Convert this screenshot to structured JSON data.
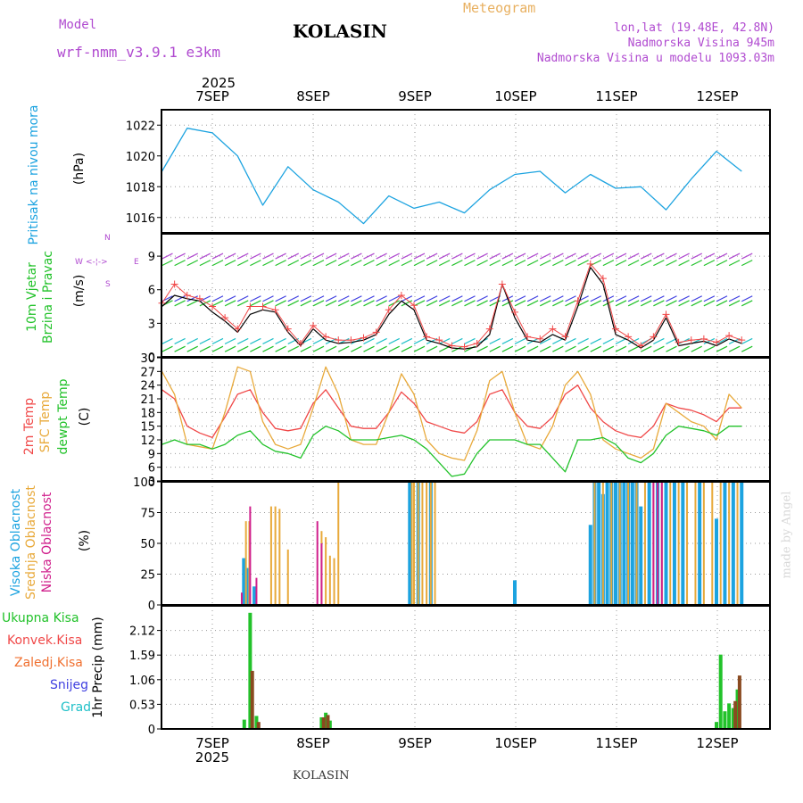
{
  "header": {
    "model_label": "Model",
    "model_name": "wrf-nmm_v3.9.1  e3km",
    "station": "KOLASIN",
    "meteogram": "Meteogram",
    "lonlat": "lon,lat (19.48E, 42.8N)",
    "alt": "Nadmorska Visina 945m",
    "alt_model": "Nadmorska Visina u modelu 1093.03m",
    "footer": "KOLASIN",
    "watermark": "made by Angel"
  },
  "colors": {
    "pressure": "#1ca3e0",
    "green": "#22c22a",
    "orange": "#e8a93a",
    "red": "#f04848",
    "purple": "#b04ad0",
    "magenta": "#d0208c",
    "blue": "#4040e0",
    "cyan": "#20c0c8"
  },
  "xaxis": {
    "year": "2025",
    "days": [
      "7SEP",
      "8SEP",
      "9SEP",
      "10SEP",
      "11SEP",
      "12SEP"
    ]
  },
  "chart_data": [
    {
      "type": "line",
      "panel": "pressure",
      "labels": [
        "Pritisak na nivou mora",
        "(hPa)"
      ],
      "ylim": [
        1015,
        1023
      ],
      "yticks": [
        "1016",
        "1018",
        "1020",
        "1022"
      ],
      "x": [
        0,
        6,
        12,
        18,
        24,
        30,
        36,
        42,
        48,
        54,
        60,
        66,
        72,
        78,
        84,
        90,
        96,
        102,
        108,
        114,
        120,
        126,
        132,
        138
      ],
      "y": [
        1019.0,
        1021.8,
        1021.5,
        1020.0,
        1016.8,
        1019.3,
        1017.8,
        1017.0,
        1015.6,
        1017.4,
        1016.6,
        1017.0,
        1016.3,
        1017.8,
        1018.8,
        1019.0,
        1017.6,
        1018.8,
        1017.9,
        1018.0,
        1016.5,
        1018.5,
        1020.3,
        1019.0
      ],
      "grid": "dotted"
    },
    {
      "type": "line",
      "panel": "wind",
      "labels": [
        "10m Vjetar",
        "Brzina i Pravac",
        "(m/s)"
      ],
      "compass": [
        "N",
        "W",
        "E",
        "S"
      ],
      "ylim": [
        0,
        11
      ],
      "yticks": [
        "0",
        "3",
        "6",
        "9"
      ],
      "x": [
        0,
        3,
        6,
        9,
        12,
        15,
        18,
        21,
        24,
        27,
        30,
        33,
        36,
        39,
        42,
        45,
        48,
        51,
        54,
        57,
        60,
        63,
        66,
        69,
        72,
        75,
        78,
        81,
        84,
        87,
        90,
        93,
        96,
        99,
        102,
        105,
        108,
        111,
        114,
        117,
        120,
        123,
        126,
        129,
        132,
        135,
        138
      ],
      "series": [
        {
          "name": "speed",
          "values": [
            4.5,
            5.5,
            5.2,
            5.0,
            4.0,
            3.2,
            2.2,
            3.8,
            4.2,
            4.0,
            2.2,
            1.0,
            2.5,
            1.5,
            1.2,
            1.3,
            1.5,
            2.0,
            3.8,
            5.0,
            4.2,
            1.5,
            1.2,
            0.8,
            0.7,
            0.9,
            2.0,
            6.5,
            3.5,
            1.5,
            1.3,
            2.0,
            1.5,
            4.5,
            8.0,
            6.5,
            2.0,
            1.5,
            0.8,
            1.5,
            3.5,
            1.0,
            1.2,
            1.4,
            1.0,
            1.6,
            1.2
          ]
        },
        {
          "name": "gust",
          "values": [
            4.8,
            6.5,
            5.5,
            5.2,
            4.5,
            3.5,
            2.5,
            4.5,
            4.5,
            4.2,
            2.5,
            1.2,
            2.8,
            1.8,
            1.5,
            1.5,
            1.7,
            2.2,
            4.2,
            5.5,
            4.6,
            1.8,
            1.5,
            1.0,
            0.9,
            1.2,
            2.5,
            6.5,
            4.0,
            1.8,
            1.6,
            2.5,
            1.8,
            5.0,
            8.3,
            7.0,
            2.5,
            1.8,
            1.0,
            1.8,
            3.8,
            1.3,
            1.5,
            1.6,
            1.3,
            1.9,
            1.5
          ]
        }
      ]
    },
    {
      "type": "line",
      "panel": "temperature",
      "labels": [
        "2m Temp",
        "SFC Temp",
        "dewpt Temp",
        "(C)"
      ],
      "ylim": [
        3,
        30
      ],
      "yticks": [
        "3",
        "6",
        "9",
        "12",
        "15",
        "18",
        "21",
        "24",
        "27",
        "30"
      ],
      "x": [
        0,
        3,
        6,
        9,
        12,
        15,
        18,
        21,
        24,
        27,
        30,
        33,
        36,
        39,
        42,
        45,
        48,
        51,
        54,
        57,
        60,
        63,
        66,
        69,
        72,
        75,
        78,
        81,
        84,
        87,
        90,
        93,
        96,
        99,
        102,
        105,
        108,
        111,
        114,
        117,
        120,
        123,
        126,
        129,
        132,
        135,
        138
      ],
      "series": [
        {
          "name": "2m Temp",
          "values": [
            23,
            21,
            15,
            13.5,
            12.5,
            17,
            22,
            23,
            18,
            14.5,
            14,
            14.5,
            20,
            23,
            19,
            15,
            14.5,
            14.5,
            18,
            22.5,
            20,
            16,
            15,
            14,
            13.5,
            16,
            22,
            23,
            18,
            15,
            14.5,
            17,
            22,
            24,
            19,
            16,
            14,
            13,
            12.5,
            15,
            20,
            19,
            18.5,
            17.5,
            16,
            19,
            19
          ]
        },
        {
          "name": "SFC Temp",
          "values": [
            27,
            22,
            11,
            10.5,
            10,
            18,
            28,
            27,
            16,
            11,
            10,
            11,
            19,
            28,
            22,
            12,
            11,
            11,
            18,
            26.5,
            22,
            12,
            9,
            8,
            7.5,
            14,
            25,
            27,
            18,
            11,
            10,
            15,
            24,
            27,
            22,
            12,
            10,
            9,
            8,
            10,
            20,
            18,
            16,
            15,
            12,
            22,
            19
          ]
        },
        {
          "name": "dewpt Temp",
          "values": [
            11,
            12,
            11,
            11,
            10,
            11,
            13,
            14,
            11,
            9.5,
            9,
            8,
            13,
            15,
            14,
            12,
            12,
            12,
            12.5,
            13,
            12,
            10,
            7,
            4,
            4.5,
            9,
            12,
            12,
            12,
            11,
            11,
            8,
            5,
            12,
            12,
            12.5,
            11,
            8,
            7,
            9,
            13,
            15,
            14.5,
            14,
            13,
            15,
            15
          ]
        }
      ]
    },
    {
      "type": "bar",
      "panel": "cloud",
      "labels": [
        "Visoka Oblacnost",
        "Srednja Oblacnost",
        "Niska Oblacnost",
        "(%)"
      ],
      "ylim": [
        0,
        100
      ],
      "yticks": [
        "0",
        "25",
        "50",
        "75",
        "100"
      ],
      "series": [
        {
          "name": "Visoka",
          "x": [
            19.5,
            20.5,
            22,
            59,
            61,
            64,
            84,
            102,
            103,
            104,
            105,
            106,
            107,
            108,
            109,
            110,
            111,
            112,
            113,
            114,
            116,
            118,
            120,
            122,
            124,
            128,
            132,
            134,
            136,
            138
          ],
          "values": [
            38,
            30,
            15,
            100,
            100,
            100,
            20,
            65,
            100,
            100,
            90,
            100,
            100,
            100,
            100,
            100,
            100,
            100,
            100,
            80,
            100,
            100,
            100,
            100,
            100,
            100,
            70,
            100,
            100,
            100
          ]
        },
        {
          "name": "Srednja",
          "x": [
            20,
            20.8,
            26,
            27,
            28,
            30,
            38,
            39,
            40,
            41,
            42,
            59.5,
            60,
            61,
            62,
            63,
            64,
            65,
            103,
            105,
            107,
            109,
            111,
            113,
            115,
            117,
            119,
            121,
            123,
            125,
            127,
            129,
            131,
            133,
            135,
            137
          ],
          "values": [
            68,
            68,
            80,
            80,
            78,
            45,
            60,
            55,
            40,
            38,
            100,
            100,
            100,
            100,
            100,
            100,
            100,
            100,
            100,
            100,
            100,
            100,
            100,
            100,
            100,
            100,
            100,
            100,
            100,
            100,
            100,
            100,
            100,
            100,
            100,
            100
          ]
        },
        {
          "name": "Niska",
          "x": [
            19,
            21,
            22.5,
            37,
            38,
            117,
            118,
            119
          ],
          "values": [
            10,
            80,
            22,
            68,
            50,
            100,
            100,
            100
          ]
        }
      ]
    },
    {
      "type": "bar",
      "panel": "precip",
      "labels": [
        "Ukupna Kisa",
        "Konvek.Kisa",
        "Zaledj.Kisa",
        "Snijeg",
        "Grad",
        "1hr Precip (mm)"
      ],
      "ylim": [
        0,
        2.65
      ],
      "yticks": [
        "0",
        "0.53",
        "1.06",
        "1.59",
        "2.12"
      ],
      "series": [
        {
          "name": "Ukupna Kisa",
          "x": [
            19.6,
            21,
            22.5,
            38,
            39,
            40,
            132,
            133,
            134,
            135,
            136,
            137
          ],
          "values": [
            0.2,
            2.5,
            0.28,
            0.25,
            0.35,
            0.18,
            0.15,
            1.6,
            0.38,
            0.55,
            0.45,
            0.85
          ]
        },
        {
          "name": "Konvek.Kisa",
          "x": [
            21.5,
            23,
            38.5,
            39.5,
            136.5,
            137.5
          ],
          "values": [
            1.25,
            0.15,
            0.25,
            0.3,
            0.6,
            1.15
          ]
        }
      ]
    }
  ]
}
